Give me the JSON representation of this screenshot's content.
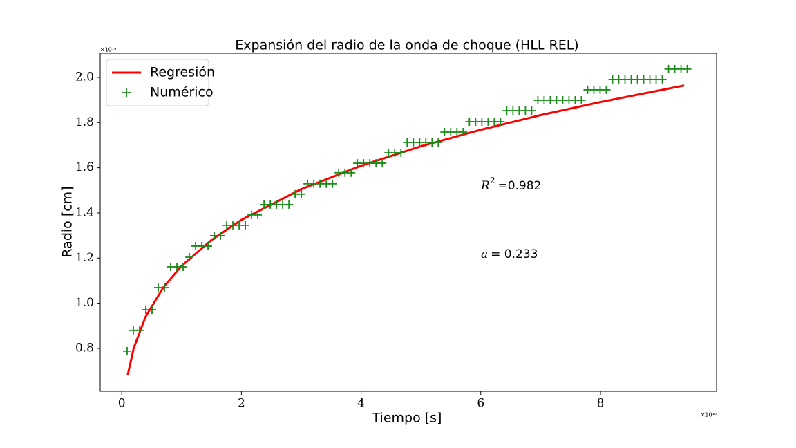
{
  "chart_data": {
    "type": "line",
    "title": "Expansión del radio de la onda de choque (HLL REL)",
    "x_label": "Tiempo [s]",
    "y_label": "Radio [cm]",
    "x_offset_label": "×10¹⁰",
    "y_offset_label": "×10¹⁹",
    "xlim": [
      -0.36,
      9.94
    ],
    "ylim": [
      0.61,
      2.107
    ],
    "xticks": [
      0,
      2,
      4,
      6,
      8
    ],
    "yticks": [
      0.8,
      {
        "value": 1,
        "label": "1.0"
      },
      1.2,
      1.4,
      1.6,
      1.8,
      {
        "value": 2,
        "label": "2.0"
      }
    ],
    "legend": "upper left",
    "series": [
      {
        "name": "Regresión",
        "type": "line",
        "color": "#ff0000",
        "x": [
          0.1,
          0.2,
          0.4,
          0.7,
          1,
          1.5,
          2,
          3,
          4,
          5,
          6,
          7,
          8,
          9.4
        ],
        "values": [
          0.682,
          0.801,
          0.941,
          1.072,
          1.165,
          1.28,
          1.369,
          1.505,
          1.609,
          1.695,
          1.768,
          1.833,
          1.891,
          1.964
        ]
      },
      {
        "name": "Numérico",
        "type": "scatter",
        "color": "#1a8c1a",
        "x": [
          0.09,
          0.194,
          0.298,
          0.402,
          0.506,
          0.61,
          0.714,
          0.818,
          0.922,
          1.026,
          1.13,
          1.234,
          1.338,
          1.442,
          1.546,
          1.65,
          1.754,
          1.858,
          1.962,
          2.066,
          2.17,
          2.274,
          2.378,
          2.482,
          2.586,
          2.69,
          2.794,
          2.898,
          3.002,
          3.106,
          3.21,
          3.314,
          3.418,
          3.522,
          3.626,
          3.73,
          3.834,
          3.938,
          4.042,
          4.146,
          4.25,
          4.354,
          4.458,
          4.562,
          4.666,
          4.77,
          4.874,
          4.978,
          5.082,
          5.186,
          5.29,
          5.394,
          5.498,
          5.602,
          5.706,
          5.81,
          5.914,
          6.018,
          6.122,
          6.226,
          6.33,
          6.434,
          6.538,
          6.642,
          6.746,
          6.85,
          6.954,
          7.058,
          7.162,
          7.266,
          7.37,
          7.474,
          7.578,
          7.682,
          7.786,
          7.89,
          7.994,
          8.098,
          8.202,
          8.306,
          8.41,
          8.514,
          8.618,
          8.722,
          8.826,
          8.93,
          9.034,
          9.138,
          9.242,
          9.346,
          9.45
        ],
        "values": [
          0.788,
          0.88,
          0.88,
          0.971,
          0.971,
          1.069,
          1.069,
          1.161,
          1.161,
          1.161,
          1.204,
          1.253,
          1.253,
          1.253,
          1.299,
          1.299,
          1.345,
          1.345,
          1.345,
          1.345,
          1.391,
          1.391,
          1.437,
          1.437,
          1.437,
          1.437,
          1.437,
          1.483,
          1.483,
          1.529,
          1.529,
          1.529,
          1.529,
          1.529,
          1.578,
          1.578,
          1.578,
          1.62,
          1.62,
          1.62,
          1.62,
          1.62,
          1.666,
          1.666,
          1.666,
          1.712,
          1.712,
          1.712,
          1.712,
          1.712,
          1.712,
          1.758,
          1.758,
          1.758,
          1.758,
          1.804,
          1.804,
          1.804,
          1.804,
          1.804,
          1.804,
          1.853,
          1.853,
          1.853,
          1.853,
          1.853,
          1.899,
          1.899,
          1.899,
          1.899,
          1.899,
          1.899,
          1.899,
          1.899,
          1.945,
          1.945,
          1.945,
          1.945,
          1.991,
          1.991,
          1.991,
          1.991,
          1.991,
          1.991,
          1.991,
          1.991,
          1.991,
          2.037,
          2.037,
          2.037,
          2.037
        ]
      }
    ],
    "annotations": [
      {
        "symbol": "R",
        "exponent": "2",
        "text": "=0.982"
      },
      {
        "symbol": "a",
        "text": "=  0.233"
      }
    ]
  }
}
